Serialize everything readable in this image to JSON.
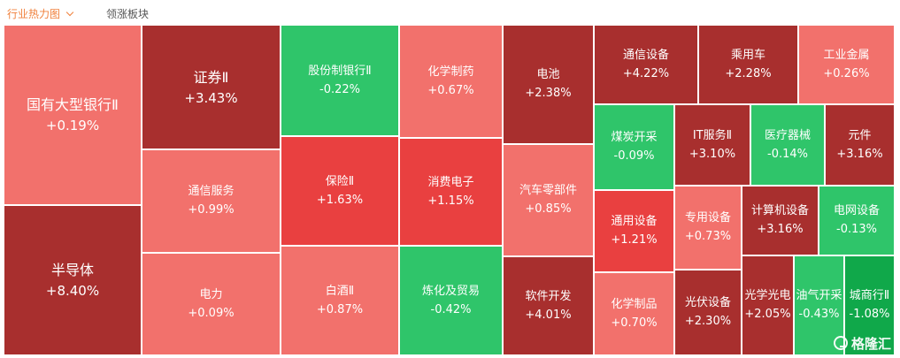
{
  "tabs": {
    "active": "行业热力图",
    "inactive": "领涨板块"
  },
  "colors": {
    "dark_red": "#a82f2e",
    "red": "#e94040",
    "light_red": "#f2716c",
    "green": "#2fc56a",
    "bright_green": "#10a84a"
  },
  "sectors": [
    {
      "name": "国有大型银行Ⅱ",
      "change": "+0.19%",
      "color": "light_red"
    },
    {
      "name": "半导体",
      "change": "+8.40%",
      "color": "dark_red"
    },
    {
      "name": "证券Ⅱ",
      "change": "+3.43%",
      "color": "dark_red"
    },
    {
      "name": "通信服务",
      "change": "+0.99%",
      "color": "light_red"
    },
    {
      "name": "电力",
      "change": "+0.09%",
      "color": "light_red"
    },
    {
      "name": "股份制银行Ⅱ",
      "change": "-0.22%",
      "color": "green"
    },
    {
      "name": "保险Ⅱ",
      "change": "+1.63%",
      "color": "red"
    },
    {
      "name": "白酒Ⅱ",
      "change": "+0.87%",
      "color": "light_red"
    },
    {
      "name": "化学制药",
      "change": "+0.67%",
      "color": "light_red"
    },
    {
      "name": "消费电子",
      "change": "+1.15%",
      "color": "red"
    },
    {
      "name": "炼化及贸易",
      "change": "-0.42%",
      "color": "green"
    },
    {
      "name": "电池",
      "change": "+2.38%",
      "color": "dark_red"
    },
    {
      "name": "汽车零部件",
      "change": "+0.85%",
      "color": "light_red"
    },
    {
      "name": "软件开发",
      "change": "+4.01%",
      "color": "dark_red"
    },
    {
      "name": "通信设备",
      "change": "+4.22%",
      "color": "dark_red"
    },
    {
      "name": "乘用车",
      "change": "+2.28%",
      "color": "dark_red"
    },
    {
      "name": "工业金属",
      "change": "+0.26%",
      "color": "light_red"
    },
    {
      "name": "煤炭开采",
      "change": "-0.09%",
      "color": "green"
    },
    {
      "name": "IT服务Ⅱ",
      "change": "+3.10%",
      "color": "dark_red"
    },
    {
      "name": "医疗器械",
      "change": "-0.14%",
      "color": "green"
    },
    {
      "name": "元件",
      "change": "+3.16%",
      "color": "dark_red"
    },
    {
      "name": "通用设备",
      "change": "+1.21%",
      "color": "red"
    },
    {
      "name": "专用设备",
      "change": "+0.73%",
      "color": "light_red"
    },
    {
      "name": "计算机设备",
      "change": "+3.16%",
      "color": "dark_red"
    },
    {
      "name": "电网设备",
      "change": "-0.13%",
      "color": "green"
    },
    {
      "name": "化学制品",
      "change": "+0.70%",
      "color": "light_red"
    },
    {
      "name": "光伏设备",
      "change": "+2.30%",
      "color": "dark_red"
    },
    {
      "name": "光学光电",
      "change": "+2.05%",
      "color": "dark_red"
    },
    {
      "name": "油气开采",
      "change": "-0.43%",
      "color": "green"
    },
    {
      "name": "城商行Ⅱ",
      "change": "-1.08%",
      "color": "bright_green"
    }
  ],
  "watermark": {
    "text": "格隆汇",
    "icon": "gelonghui-logo-icon"
  }
}
